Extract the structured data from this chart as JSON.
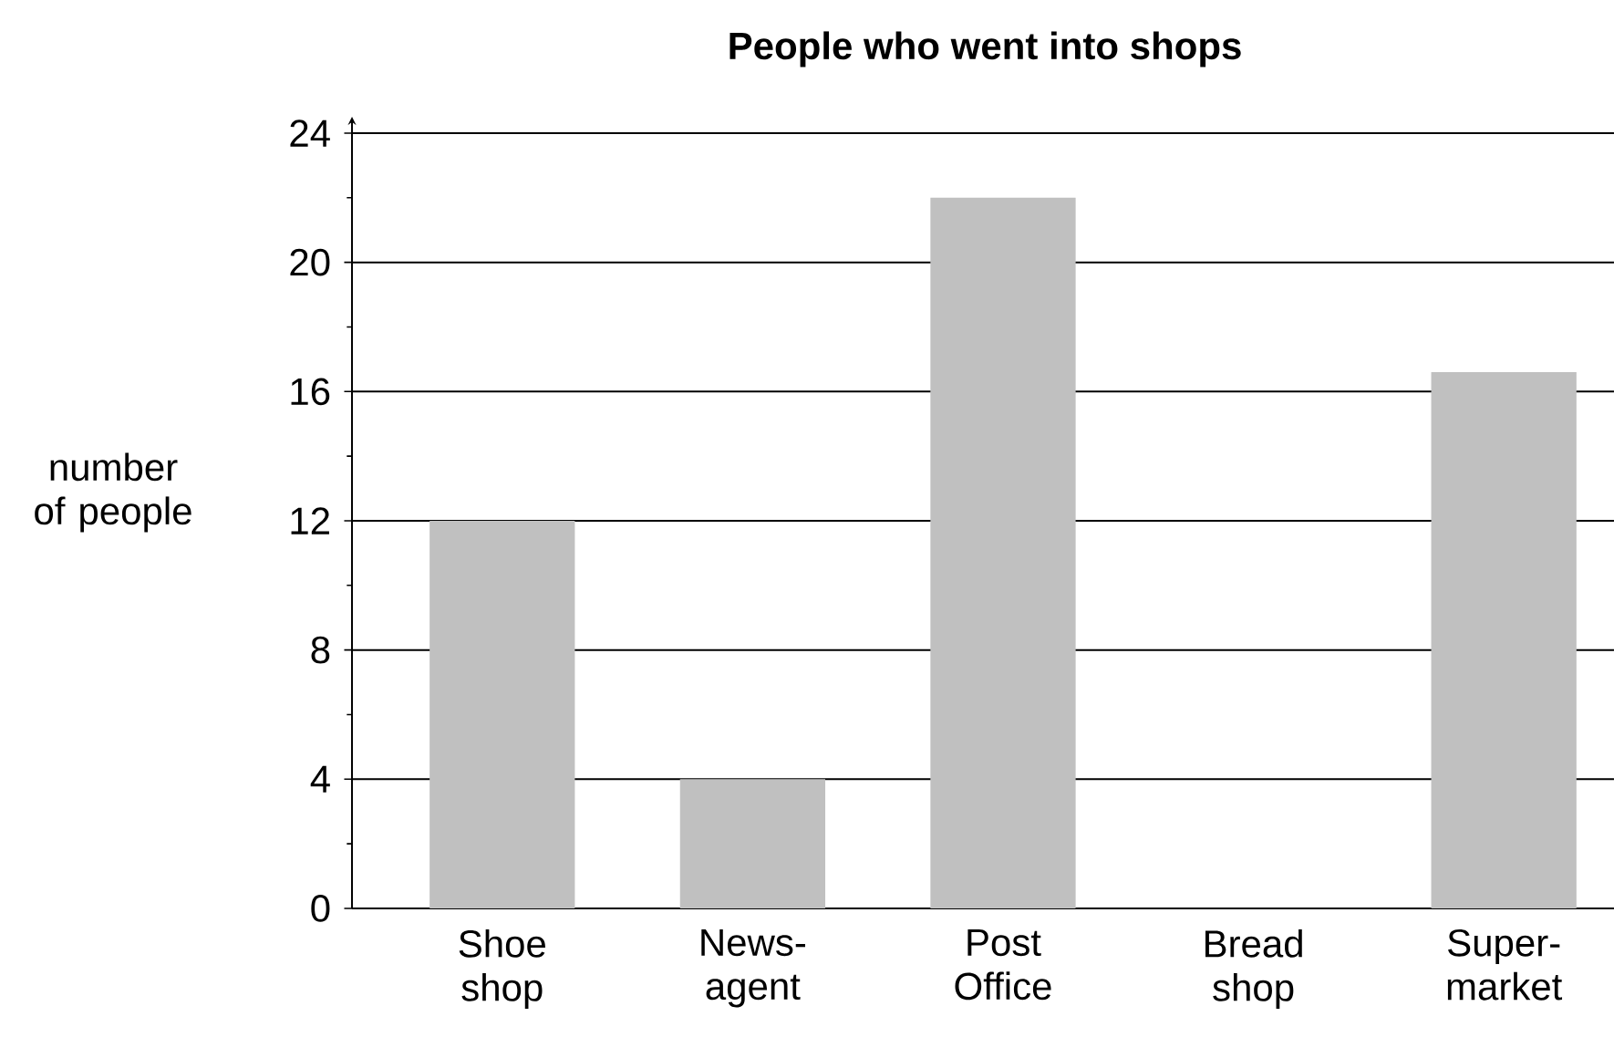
{
  "chart_data": {
    "type": "bar",
    "title": "People who went into shops",
    "ylabel": "number of people",
    "categories": [
      "Shoe shop",
      "News-agent",
      "Post Office",
      "Bread shop",
      "Super-market"
    ],
    "values": [
      12,
      4,
      22,
      null,
      16.6
    ],
    "color": "#c0c0c0",
    "ylim": [
      0,
      24
    ],
    "yticks": [
      0,
      4,
      8,
      12,
      16,
      20,
      24
    ],
    "grid": "y"
  }
}
